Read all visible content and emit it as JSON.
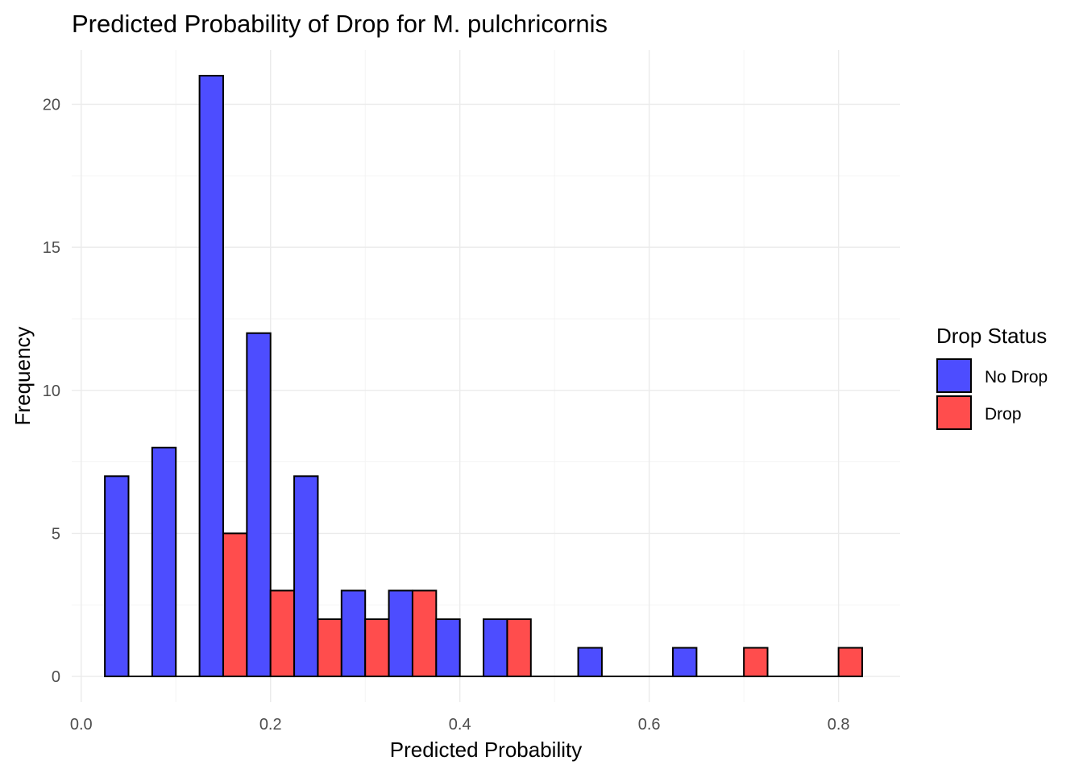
{
  "chart_data": {
    "type": "bar",
    "title": "Predicted Probability of Drop for M. pulchricornis",
    "xlabel": "Predicted Probability",
    "ylabel": "Frequency",
    "xlim": [
      -0.01,
      0.865
    ],
    "ylim": [
      -0.9,
      21.9
    ],
    "x_ticks": [
      "0.0",
      "0.2",
      "0.4",
      "0.6",
      "0.8"
    ],
    "x_tick_values": [
      0.0,
      0.2,
      0.4,
      0.6,
      0.8
    ],
    "y_ticks": [
      "0",
      "5",
      "10",
      "15",
      "20"
    ],
    "y_tick_values": [
      0,
      5,
      10,
      15,
      20
    ],
    "grid": true,
    "bin_width": 0.05,
    "bin_centers": [
      0.05,
      0.1,
      0.15,
      0.2,
      0.25,
      0.3,
      0.35,
      0.4,
      0.45,
      0.5,
      0.55,
      0.6,
      0.65,
      0.7,
      0.75,
      0.8
    ],
    "series": [
      {
        "name": "No Drop",
        "color": "#4D4DFF",
        "values": [
          7,
          8,
          21,
          12,
          7,
          3,
          3,
          2,
          2,
          0,
          1,
          0,
          1,
          0,
          0,
          0
        ]
      },
      {
        "name": "Drop",
        "color": "#FF4D4D",
        "values": [
          0,
          0,
          5,
          3,
          2,
          2,
          3,
          0,
          2,
          0,
          0,
          0,
          0,
          1,
          0,
          1
        ]
      }
    ],
    "legend": {
      "title": "Drop Status",
      "position": "right"
    }
  }
}
